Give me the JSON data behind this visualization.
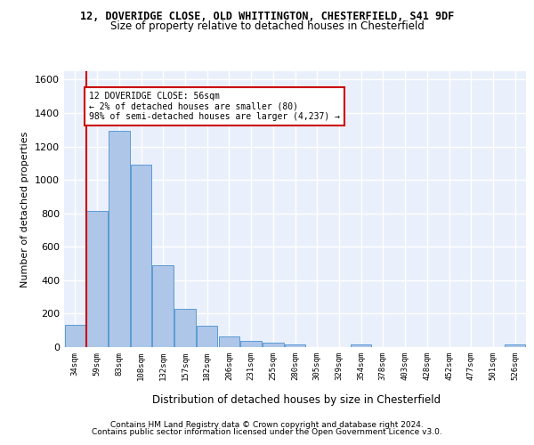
{
  "title1": "12, DOVERIDGE CLOSE, OLD WHITTINGTON, CHESTERFIELD, S41 9DF",
  "title2": "Size of property relative to detached houses in Chesterfield",
  "xlabel": "Distribution of detached houses by size in Chesterfield",
  "ylabel": "Number of detached properties",
  "bar_categories": [
    "34sqm",
    "59sqm",
    "83sqm",
    "108sqm",
    "132sqm",
    "157sqm",
    "182sqm",
    "206sqm",
    "231sqm",
    "255sqm",
    "280sqm",
    "305sqm",
    "329sqm",
    "354sqm",
    "378sqm",
    "403sqm",
    "428sqm",
    "452sqm",
    "477sqm",
    "501sqm",
    "526sqm"
  ],
  "bar_values": [
    135,
    815,
    1295,
    1090,
    490,
    230,
    130,
    65,
    38,
    28,
    16,
    0,
    0,
    18,
    0,
    0,
    0,
    0,
    0,
    0,
    16
  ],
  "bar_color": "#aec6e8",
  "bar_edgecolor": "#5b9bd5",
  "annotation_text": "12 DOVERIDGE CLOSE: 56sqm\n← 2% of detached houses are smaller (80)\n98% of semi-detached houses are larger (4,237) →",
  "annotation_box_color": "#cc0000",
  "ylim": [
    0,
    1650
  ],
  "yticks": [
    0,
    200,
    400,
    600,
    800,
    1000,
    1200,
    1400,
    1600
  ],
  "footer1": "Contains HM Land Registry data © Crown copyright and database right 2024.",
  "footer2": "Contains public sector information licensed under the Open Government Licence v3.0.",
  "plot_bg_color": "#eaf0fb",
  "grid_color": "#ffffff",
  "red_line_color": "#cc0000"
}
